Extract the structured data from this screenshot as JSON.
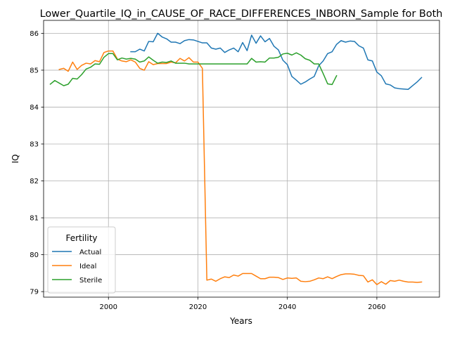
{
  "chart_data": {
    "type": "line",
    "title": "Lower_Quartile_IQ_in_CAUSE_OF_RACE_DIFFERENCES_INBORN_Sample for Both",
    "xlabel": "Years",
    "ylabel": "IQ",
    "xlim": [
      1985.5,
      2074
    ],
    "ylim": [
      78.85,
      86.35
    ],
    "xticks": [
      2000,
      2020,
      2040,
      2060
    ],
    "yticks": [
      79,
      80,
      81,
      82,
      83,
      84,
      85,
      86
    ],
    "grid": true,
    "legend": {
      "title": "Fertility",
      "placement": "lower-left"
    },
    "series": [
      {
        "name": "Actual",
        "color": "#1f77b4",
        "x": [
          2005,
          2006,
          2007,
          2008,
          2009,
          2010,
          2011,
          2012,
          2013,
          2014,
          2015,
          2016,
          2017,
          2018,
          2019,
          2020,
          2021,
          2022,
          2023,
          2024,
          2025,
          2026,
          2027,
          2028,
          2029,
          2030,
          2031,
          2032,
          2033,
          2034,
          2035,
          2036,
          2037,
          2038,
          2039,
          2040,
          2041,
          2042,
          2043,
          2044,
          2045,
          2046,
          2047,
          2048,
          2049,
          2050,
          2051,
          2052,
          2053,
          2054,
          2055,
          2056,
          2057,
          2058,
          2059,
          2060,
          2061,
          2062,
          2063,
          2064,
          2065,
          2066,
          2067,
          2068,
          2069,
          2070
        ],
        "y": [
          85.5,
          85.5,
          85.57,
          85.52,
          85.78,
          85.77,
          86.0,
          85.9,
          85.85,
          85.76,
          85.76,
          85.72,
          85.8,
          85.83,
          85.82,
          85.78,
          85.74,
          85.74,
          85.6,
          85.57,
          85.6,
          85.48,
          85.55,
          85.6,
          85.5,
          85.75,
          85.53,
          85.95,
          85.73,
          85.93,
          85.77,
          85.86,
          85.65,
          85.55,
          85.27,
          85.15,
          84.83,
          84.73,
          84.62,
          84.68,
          84.76,
          84.83,
          85.12,
          85.25,
          85.45,
          85.5,
          85.7,
          85.8,
          85.76,
          85.79,
          85.78,
          85.66,
          85.6,
          85.28,
          85.25,
          84.95,
          84.85,
          84.63,
          84.6,
          84.52,
          84.5,
          84.49,
          84.48,
          84.58,
          84.68,
          84.8
        ]
      },
      {
        "name": "Ideal",
        "color": "#ff7f0e",
        "x": [
          1989,
          1990,
          1991,
          1992,
          1993,
          1994,
          1995,
          1996,
          1997,
          1998,
          1999,
          2000,
          2001,
          2002,
          2003,
          2004,
          2005,
          2006,
          2007,
          2008,
          2009,
          2010,
          2011,
          2012,
          2013,
          2014,
          2015,
          2016,
          2017,
          2018,
          2019,
          2020,
          2021,
          2022,
          2023,
          2024,
          2025,
          2026,
          2027,
          2028,
          2029,
          2030,
          2031,
          2032,
          2033,
          2034,
          2035,
          2036,
          2037,
          2038,
          2039,
          2040,
          2041,
          2042,
          2043,
          2044,
          2045,
          2046,
          2047,
          2048,
          2049,
          2050,
          2051,
          2052,
          2053,
          2054,
          2055,
          2056,
          2057,
          2058,
          2059,
          2060,
          2061,
          2062,
          2063,
          2064,
          2065,
          2066,
          2067,
          2068,
          2069,
          2070
        ],
        "y": [
          85.02,
          85.05,
          84.97,
          85.22,
          85.02,
          85.13,
          85.19,
          85.17,
          85.26,
          85.23,
          85.48,
          85.52,
          85.52,
          85.3,
          85.25,
          85.23,
          85.28,
          85.22,
          85.05,
          85.0,
          85.23,
          85.15,
          85.18,
          85.18,
          85.18,
          85.22,
          85.2,
          85.32,
          85.25,
          85.34,
          85.22,
          85.22,
          85.05,
          79.31,
          79.34,
          79.28,
          79.35,
          79.4,
          79.38,
          79.45,
          79.42,
          79.49,
          79.49,
          79.49,
          79.42,
          79.35,
          79.35,
          79.39,
          79.39,
          79.38,
          79.33,
          79.37,
          79.36,
          79.37,
          79.28,
          79.27,
          79.28,
          79.32,
          79.37,
          79.35,
          79.4,
          79.35,
          79.41,
          79.46,
          79.48,
          79.48,
          79.47,
          79.44,
          79.43,
          79.26,
          79.32,
          79.19,
          79.27,
          79.2,
          79.3,
          79.28,
          79.31,
          79.28,
          79.26,
          79.26,
          79.25,
          79.26
        ]
      },
      {
        "name": "Sterile",
        "color": "#2ca02c",
        "x": [
          1987,
          1988,
          1989,
          1990,
          1991,
          1992,
          1993,
          1994,
          1995,
          1996,
          1997,
          1998,
          1999,
          2000,
          2001,
          2002,
          2003,
          2004,
          2005,
          2006,
          2007,
          2008,
          2009,
          2010,
          2011,
          2012,
          2013,
          2014,
          2015,
          2016,
          2017,
          2018,
          2019,
          2020,
          2021,
          2022,
          2023,
          2024,
          2025,
          2026,
          2027,
          2028,
          2029,
          2030,
          2031,
          2032,
          2033,
          2034,
          2035,
          2036,
          2037,
          2038,
          2039,
          2040,
          2041,
          2042,
          2043,
          2044,
          2045,
          2046,
          2047,
          2048,
          2049,
          2050,
          2051
        ],
        "y": [
          84.62,
          84.72,
          84.65,
          84.58,
          84.62,
          84.78,
          84.76,
          84.88,
          85.03,
          85.08,
          85.17,
          85.16,
          85.35,
          85.45,
          85.45,
          85.28,
          85.33,
          85.3,
          85.32,
          85.3,
          85.22,
          85.25,
          85.36,
          85.27,
          85.19,
          85.22,
          85.21,
          85.25,
          85.19,
          85.19,
          85.19,
          85.17,
          85.17,
          85.17,
          85.17,
          85.17,
          85.17,
          85.17,
          85.17,
          85.17,
          85.17,
          85.17,
          85.17,
          85.17,
          85.17,
          85.32,
          85.22,
          85.23,
          85.22,
          85.33,
          85.33,
          85.35,
          85.44,
          85.46,
          85.41,
          85.47,
          85.41,
          85.31,
          85.27,
          85.17,
          85.17,
          84.91,
          84.63,
          84.61,
          84.85
        ]
      }
    ]
  }
}
